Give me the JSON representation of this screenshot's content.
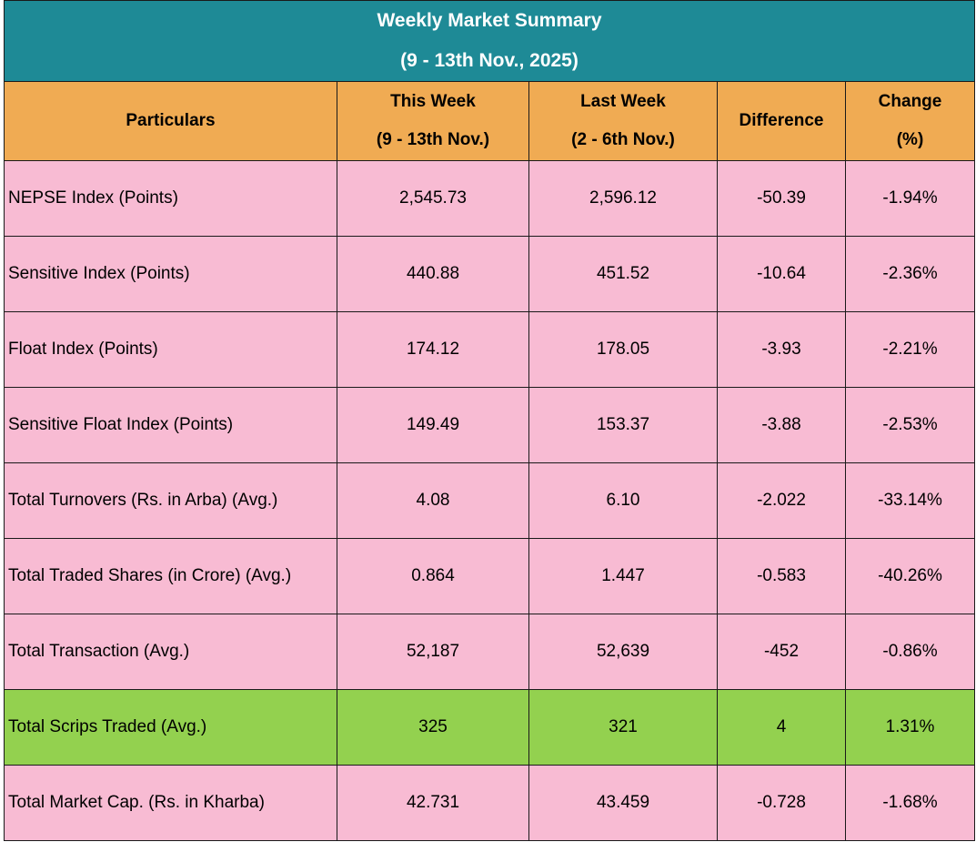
{
  "title": {
    "line1": "Weekly Market Summary",
    "line2": "(9 - 13th Nov., 2025)"
  },
  "headers": {
    "particulars": "Particulars",
    "this_week": {
      "line1": "This Week",
      "line2": "(9 - 13th Nov.)"
    },
    "last_week": {
      "line1": "Last Week",
      "line2": "(2 - 6th Nov.)"
    },
    "difference": "Difference",
    "change": {
      "line1": "Change",
      "line2": "(%)"
    }
  },
  "colors": {
    "title_bg": "#1e8a96",
    "header_bg": "#f0ab53",
    "row_pink": "#f8bbd3",
    "row_green": "#93d14f"
  },
  "rows": [
    {
      "particular": "NEPSE Index (Points)",
      "this_week": "2,545.73",
      "last_week": "2,596.12",
      "difference": "-50.39",
      "change": "-1.94%"
    },
    {
      "particular": "Sensitive Index (Points)",
      "this_week": "440.88",
      "last_week": "451.52",
      "difference": "-10.64",
      "change": "-2.36%"
    },
    {
      "particular": "Float Index (Points)",
      "this_week": "174.12",
      "last_week": "178.05",
      "difference": "-3.93",
      "change": "-2.21%"
    },
    {
      "particular": "Sensitive Float Index (Points)",
      "this_week": "149.49",
      "last_week": "153.37",
      "difference": "-3.88",
      "change": "-2.53%"
    },
    {
      "particular": "Total Turnovers (Rs. in Arba) (Avg.)",
      "this_week": "4.08",
      "last_week": "6.10",
      "difference": "-2.022",
      "change": "-33.14%"
    },
    {
      "particular": "Total Traded Shares (in Crore) (Avg.)",
      "this_week": "0.864",
      "last_week": "1.447",
      "difference": "-0.583",
      "change": "-40.26%"
    },
    {
      "particular": "Total Transaction (Avg.)",
      "this_week": "52,187",
      "last_week": "52,639",
      "difference": "-452",
      "change": "-0.86%"
    },
    {
      "particular": "Total Scrips Traded (Avg.)",
      "this_week": "325",
      "last_week": "321",
      "difference": "4",
      "change": "1.31%"
    },
    {
      "particular": "Total Market Cap. (Rs. in Kharba)",
      "this_week": "42.731",
      "last_week": "43.459",
      "difference": "-0.728",
      "change": "-1.68%"
    }
  ]
}
